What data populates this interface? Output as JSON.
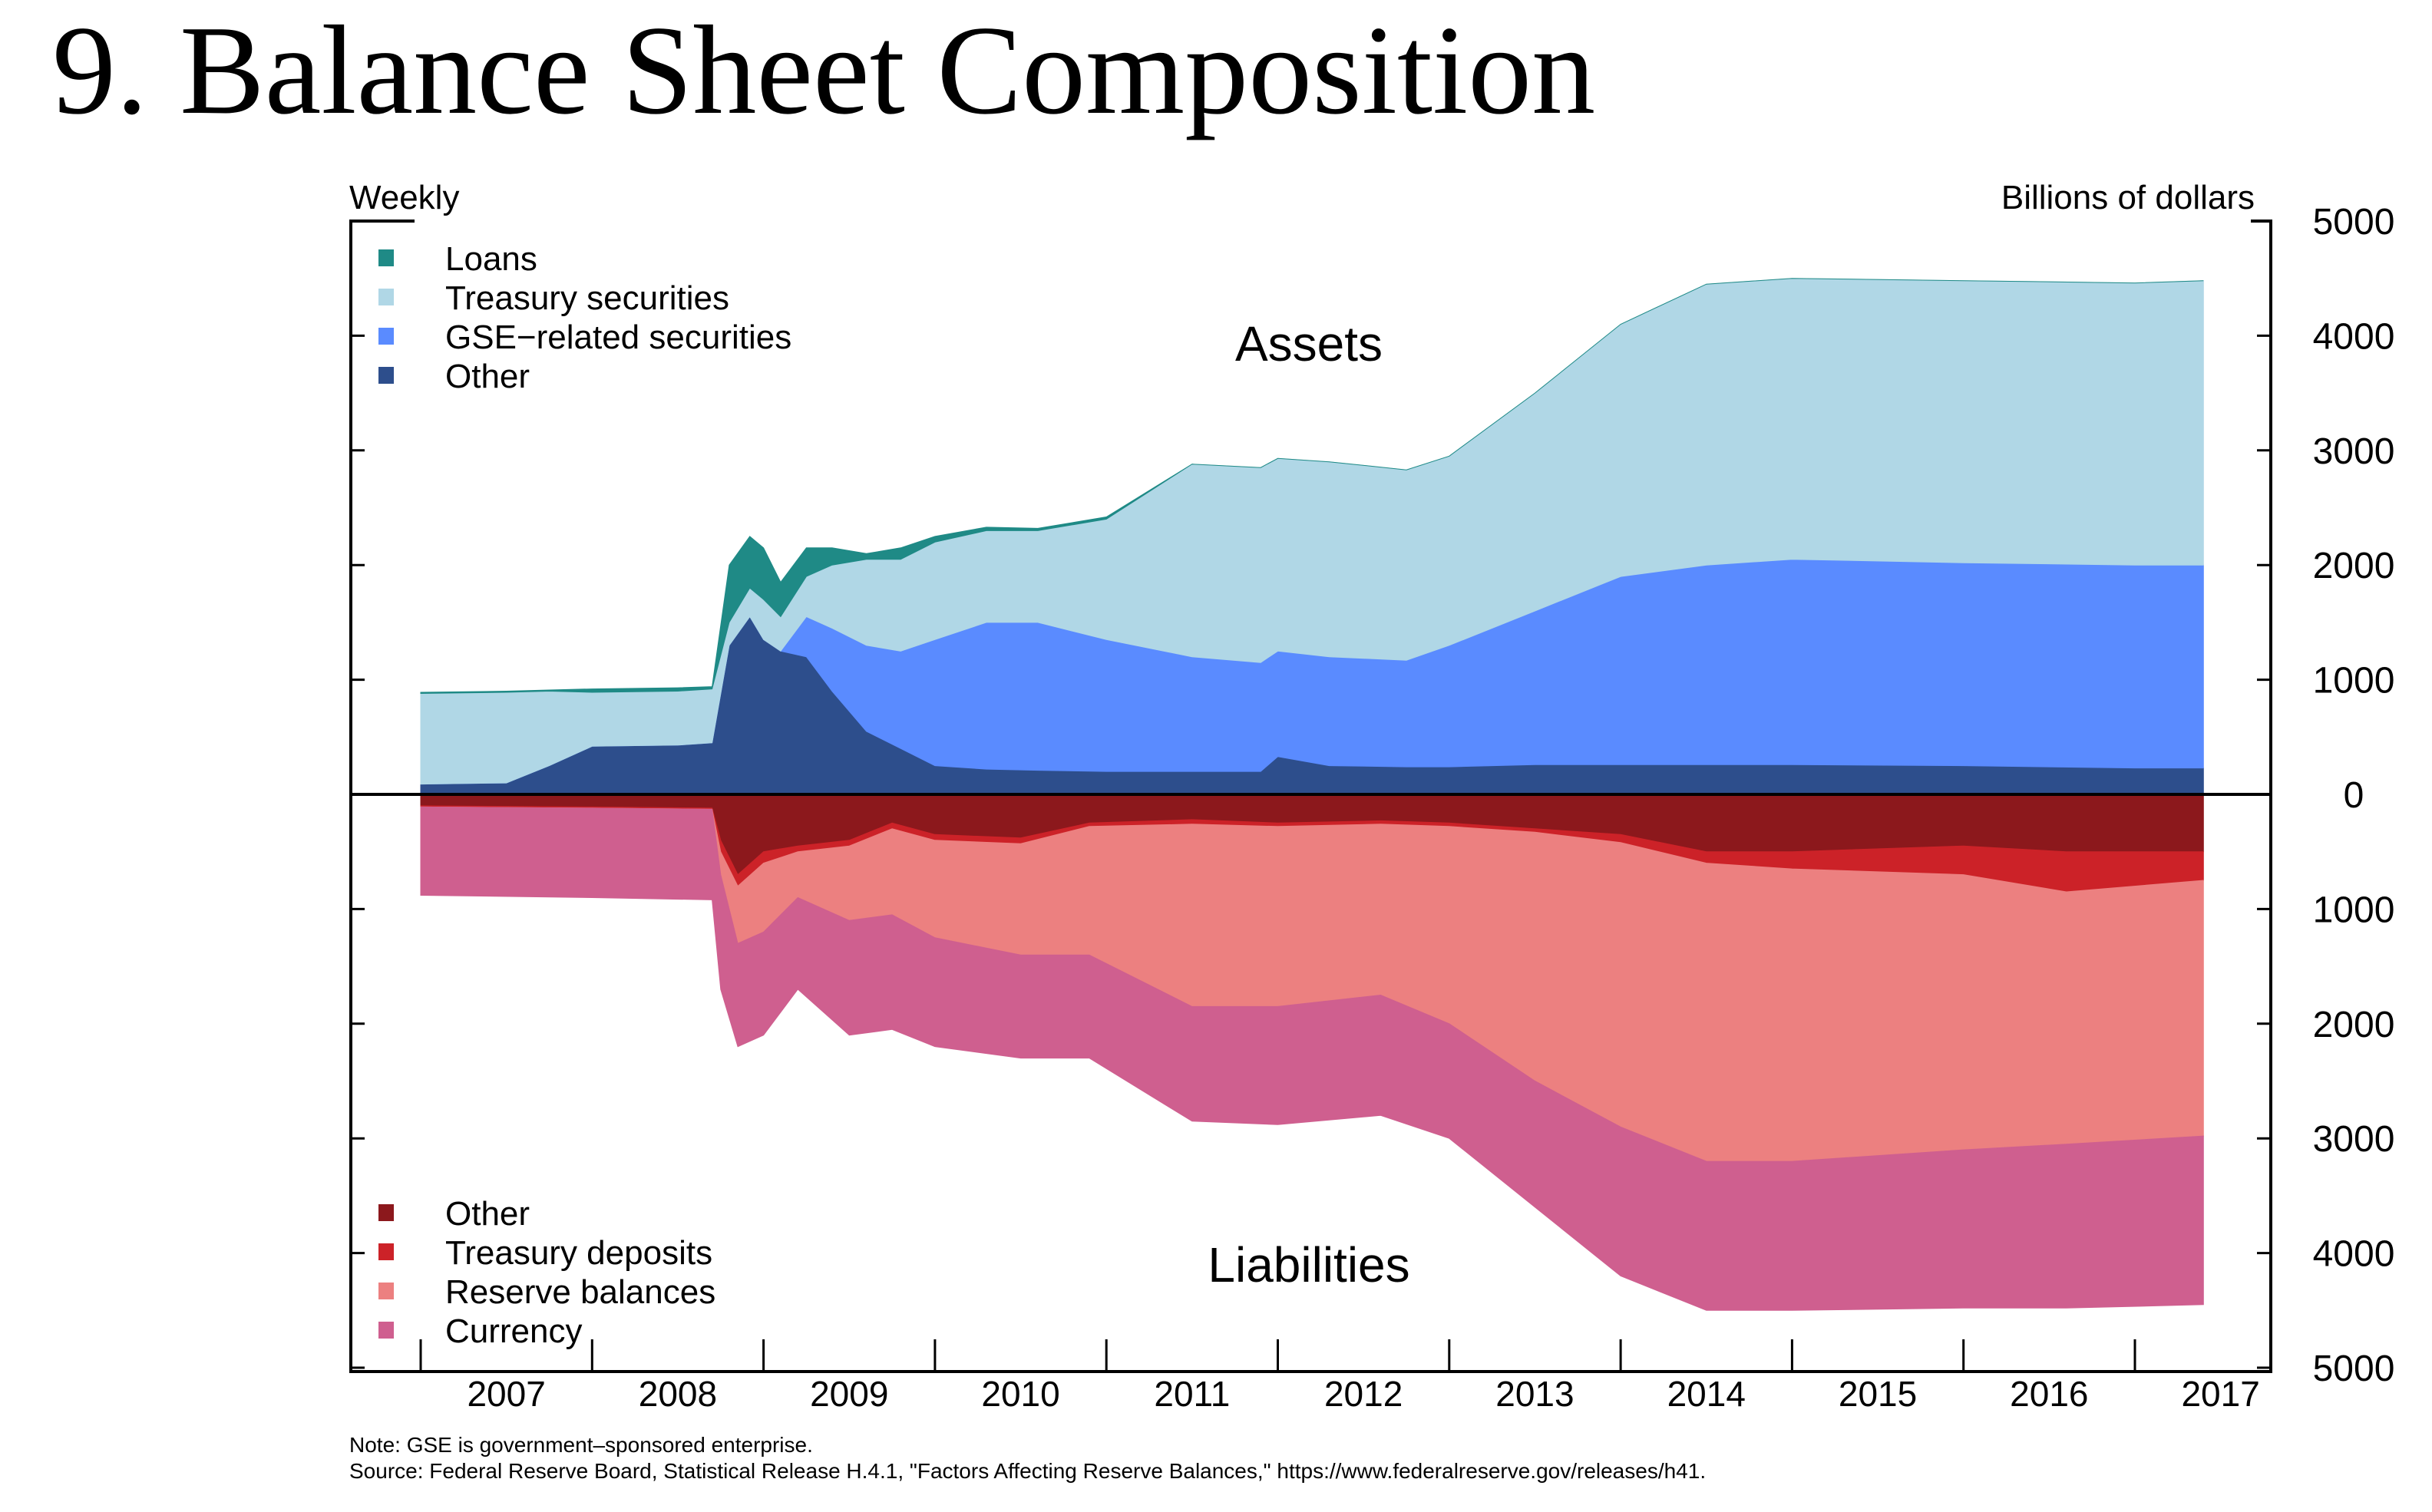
{
  "title": "9. Balance Sheet Composition",
  "note": "Note:  GSE is government–sponsored enterprise.",
  "source": "Source: Federal Reserve Board, Statistical Release H.4.1, \"Factors Affecting Reserve Balances,\" https://www.federalreserve.gov/releases/h41.",
  "chart_data": {
    "type": "area",
    "stacked": true,
    "frequency_label": "Weekly",
    "ylabel": "Billions of dollars",
    "ylim": [
      -5000,
      5000
    ],
    "y_ticks": [
      5000,
      4000,
      3000,
      2000,
      1000,
      0,
      1000,
      2000,
      3000,
      4000,
      5000
    ],
    "y_tick_values": [
      5000,
      4000,
      3000,
      2000,
      1000,
      0,
      -1000,
      -2000,
      -3000,
      -4000,
      -5000
    ],
    "x_tick_labels": [
      "2007",
      "2008",
      "2009",
      "2010",
      "2011",
      "2012",
      "2013",
      "2014",
      "2015",
      "2016",
      "2017"
    ],
    "xlim": [
      2006.75,
      2017.85
    ],
    "grid": false,
    "panels": {
      "assets": {
        "label": "Assets",
        "legend_position": "top-left",
        "x": [
          2007.0,
          2007.5,
          2007.75,
          2008.0,
          2008.5,
          2008.7,
          2008.8,
          2008.92,
          2009.0,
          2009.1,
          2009.25,
          2009.4,
          2009.6,
          2009.8,
          2010.0,
          2010.3,
          2010.6,
          2011.0,
          2011.5,
          2011.9,
          2012.0,
          2012.3,
          2012.75,
          2013.0,
          2013.5,
          2014.0,
          2014.5,
          2015.0,
          2016.0,
          2017.0,
          2017.4
        ],
        "series": [
          {
            "name": "Other",
            "color": "#2d4e8c",
            "values": [
              90,
              100,
              250,
              420,
              430,
              450,
              1300,
              1550,
              1350,
              1250,
              1200,
              900,
              550,
              400,
              250,
              220,
              210,
              200,
              200,
              200,
              330,
              250,
              240,
              240,
              260,
              260,
              260,
              260,
              250,
              230,
              230
            ]
          },
          {
            "name": "GSE−related securities",
            "color": "#5a8bff",
            "values": [
              0,
              0,
              0,
              0,
              0,
              0,
              0,
              0,
              0,
              0,
              350,
              550,
              750,
              850,
              1100,
              1280,
              1290,
              1150,
              1000,
              950,
              920,
              950,
              930,
              1060,
              1340,
              1640,
              1740,
              1790,
              1770,
              1770,
              1770
            ]
          },
          {
            "name": "Treasury securities",
            "color": "#b0d7e6",
            "values": [
              790,
              790,
              650,
              470,
              470,
              470,
              200,
              250,
              350,
              300,
              350,
              550,
              750,
              800,
              850,
              800,
              800,
              1050,
              1680,
              1700,
              1680,
              1700,
              1660,
              1650,
              1900,
              2200,
              2450,
              2450,
              2460,
              2460,
              2480
            ]
          },
          {
            "name": "Loans",
            "color": "#1f8a86",
            "values": [
              10,
              10,
              10,
              30,
              30,
              20,
              500,
              450,
              450,
              300,
              250,
              150,
              50,
              100,
              50,
              30,
              20,
              20,
              0,
              0,
              0,
              0,
              0,
              0,
              0,
              0,
              0,
              0,
              0,
              0,
              0
            ]
          }
        ],
        "legend_order": [
          "Loans",
          "Treasury securities",
          "GSE−related securities",
          "Other"
        ]
      },
      "liabilities": {
        "label": "Liabilities",
        "legend_position": "bottom-left",
        "x": [
          2007.0,
          2008.0,
          2008.7,
          2008.75,
          2008.85,
          2009.0,
          2009.2,
          2009.5,
          2009.75,
          2010.0,
          2010.5,
          2010.9,
          2011.5,
          2012.0,
          2012.6,
          2013.0,
          2013.5,
          2014.0,
          2014.5,
          2015.0,
          2016.0,
          2016.6,
          2017.4
        ],
        "series": [
          {
            "name": "Other",
            "color": "#8c181c",
            "values": [
              100,
              110,
              120,
              400,
              700,
              500,
              450,
              400,
              250,
              350,
              380,
              250,
              220,
              250,
              230,
              250,
              300,
              350,
              500,
              500,
              450,
              500,
              500
            ]
          },
          {
            "name": "Treasury deposits",
            "color": "#cc2228",
            "values": [
              10,
              10,
              10,
              100,
              100,
              100,
              50,
              50,
              50,
              50,
              50,
              30,
              40,
              30,
              30,
              30,
              30,
              70,
              100,
              150,
              250,
              350,
              250
            ]
          },
          {
            "name": "Reserve balances",
            "color": "#ec8080",
            "values": [
              0,
              0,
              0,
              200,
              500,
              600,
              400,
              650,
              750,
              850,
              970,
              1120,
              1590,
              1570,
              1490,
              1720,
              2170,
              2480,
              2600,
              2550,
              2400,
              2200,
              2230
            ]
          },
          {
            "name": "Currency",
            "color": "#cf5f8f",
            "values": [
              770,
              780,
              790,
              1000,
              900,
              900,
              800,
              1000,
              1000,
              950,
              900,
              900,
              1000,
              1030,
              1050,
              1000,
              1100,
              1300,
              1300,
              1300,
              1380,
              1430,
              1470
            ]
          }
        ],
        "legend_order": [
          "Other",
          "Treasury deposits",
          "Reserve balances",
          "Currency"
        ]
      }
    }
  }
}
